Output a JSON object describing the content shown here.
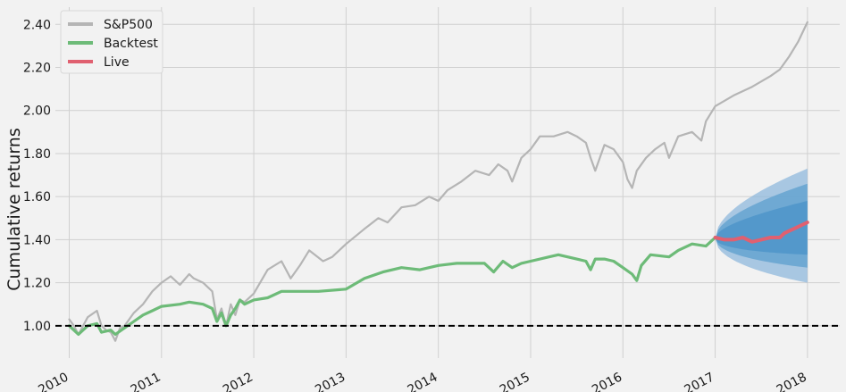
{
  "chart_data": {
    "type": "line",
    "title": "",
    "xlabel": "",
    "ylabel": "Cumulative returns",
    "xlim": [
      2009.85,
      2018.35
    ],
    "ylim": [
      0.85,
      2.48
    ],
    "yticks": [
      1.0,
      1.2,
      1.4,
      1.6,
      1.8,
      2.0,
      2.2,
      2.4
    ],
    "ytick_labels": [
      "1.00",
      "1.20",
      "1.40",
      "1.60",
      "1.80",
      "2.00",
      "2.20",
      "2.40"
    ],
    "xticks": [
      2010,
      2011,
      2012,
      2013,
      2014,
      2015,
      2016,
      2017,
      2018
    ],
    "xtick_labels": [
      "2010",
      "2011",
      "2012",
      "2013",
      "2014",
      "2015",
      "2016",
      "2017",
      "2018"
    ],
    "grid": true,
    "legend": {
      "position": "top-left",
      "entries": [
        "S&P500",
        "Backtest",
        "Live"
      ]
    },
    "baseline": {
      "y": 1.0,
      "style": "dashed",
      "color": "#000000"
    },
    "series": [
      {
        "name": "S&P500",
        "color": "#b5b5b5",
        "x": [
          2010.0,
          2010.05,
          2010.1,
          2010.2,
          2010.3,
          2010.35,
          2010.4,
          2010.45,
          2010.5,
          2010.55,
          2010.6,
          2010.7,
          2010.8,
          2010.9,
          2011.0,
          2011.1,
          2011.2,
          2011.3,
          2011.35,
          2011.45,
          2011.55,
          2011.6,
          2011.65,
          2011.7,
          2011.75,
          2011.8,
          2011.85,
          2011.9,
          2012.0,
          2012.15,
          2012.3,
          2012.4,
          2012.5,
          2012.6,
          2012.75,
          2012.85,
          2013.0,
          2013.2,
          2013.35,
          2013.45,
          2013.6,
          2013.75,
          2013.9,
          2014.0,
          2014.1,
          2014.25,
          2014.4,
          2014.55,
          2014.65,
          2014.75,
          2014.8,
          2014.9,
          2015.0,
          2015.1,
          2015.25,
          2015.4,
          2015.5,
          2015.6,
          2015.65,
          2015.7,
          2015.8,
          2015.9,
          2016.0,
          2016.05,
          2016.1,
          2016.15,
          2016.25,
          2016.35,
          2016.45,
          2016.5,
          2016.6,
          2016.75,
          2016.85,
          2016.9,
          2017.0,
          2017.2,
          2017.4,
          2017.6,
          2017.7,
          2017.8,
          2017.9,
          2018.0
        ],
        "values": [
          1.03,
          1.0,
          0.96,
          1.04,
          1.07,
          1.0,
          0.98,
          0.97,
          0.93,
          0.99,
          1.0,
          1.06,
          1.1,
          1.16,
          1.2,
          1.23,
          1.19,
          1.24,
          1.22,
          1.2,
          1.16,
          1.03,
          1.08,
          1.0,
          1.1,
          1.05,
          1.12,
          1.11,
          1.15,
          1.26,
          1.3,
          1.22,
          1.28,
          1.35,
          1.3,
          1.32,
          1.38,
          1.45,
          1.5,
          1.48,
          1.55,
          1.56,
          1.6,
          1.58,
          1.63,
          1.67,
          1.72,
          1.7,
          1.75,
          1.72,
          1.67,
          1.78,
          1.82,
          1.88,
          1.88,
          1.9,
          1.88,
          1.85,
          1.78,
          1.72,
          1.84,
          1.82,
          1.76,
          1.68,
          1.64,
          1.72,
          1.78,
          1.82,
          1.85,
          1.78,
          1.88,
          1.9,
          1.86,
          1.95,
          2.02,
          2.07,
          2.11,
          2.16,
          2.19,
          2.25,
          2.32,
          2.41
        ]
      },
      {
        "name": "Backtest",
        "color": "#6dbb78",
        "x": [
          2010.0,
          2010.05,
          2010.1,
          2010.2,
          2010.3,
          2010.35,
          2010.45,
          2010.5,
          2010.6,
          2010.7,
          2010.8,
          2010.9,
          2011.0,
          2011.2,
          2011.3,
          2011.45,
          2011.55,
          2011.6,
          2011.65,
          2011.7,
          2011.75,
          2011.8,
          2011.85,
          2011.9,
          2012.0,
          2012.15,
          2012.3,
          2012.5,
          2012.7,
          2013.0,
          2013.2,
          2013.4,
          2013.6,
          2013.8,
          2014.0,
          2014.2,
          2014.5,
          2014.6,
          2014.7,
          2014.8,
          2014.9,
          2015.0,
          2015.2,
          2015.3,
          2015.4,
          2015.5,
          2015.6,
          2015.65,
          2015.7,
          2015.8,
          2015.9,
          2016.0,
          2016.1,
          2016.15,
          2016.2,
          2016.3,
          2016.5,
          2016.6,
          2016.75,
          2016.9,
          2017.0
        ],
        "values": [
          1.0,
          0.98,
          0.96,
          1.0,
          1.01,
          0.97,
          0.98,
          0.96,
          0.99,
          1.02,
          1.05,
          1.07,
          1.09,
          1.1,
          1.11,
          1.1,
          1.08,
          1.02,
          1.06,
          1.0,
          1.05,
          1.08,
          1.12,
          1.1,
          1.12,
          1.13,
          1.16,
          1.16,
          1.16,
          1.17,
          1.22,
          1.25,
          1.27,
          1.26,
          1.28,
          1.29,
          1.29,
          1.25,
          1.3,
          1.27,
          1.29,
          1.3,
          1.32,
          1.33,
          1.32,
          1.31,
          1.3,
          1.26,
          1.31,
          1.31,
          1.3,
          1.27,
          1.24,
          1.21,
          1.28,
          1.33,
          1.32,
          1.35,
          1.38,
          1.37,
          1.41
        ]
      },
      {
        "name": "Live",
        "color": "#e06070",
        "x": [
          2017.0,
          2017.1,
          2017.2,
          2017.3,
          2017.4,
          2017.5,
          2017.6,
          2017.7,
          2017.75,
          2017.8,
          2017.9,
          2018.0
        ],
        "values": [
          1.41,
          1.4,
          1.4,
          1.41,
          1.39,
          1.4,
          1.41,
          1.41,
          1.43,
          1.44,
          1.46,
          1.48
        ]
      }
    ],
    "cone": {
      "x0": 2017.0,
      "x1": 2018.0,
      "center_start": 1.405,
      "center_end": 1.44,
      "bands": [
        {
          "upper_end": 1.73,
          "lower_end": 1.2,
          "color": "#8fb8dc"
        },
        {
          "upper_end": 1.66,
          "lower_end": 1.27,
          "color": "#5c9fce"
        },
        {
          "upper_end": 1.58,
          "lower_end": 1.33,
          "color": "#4a93c8"
        }
      ]
    }
  }
}
